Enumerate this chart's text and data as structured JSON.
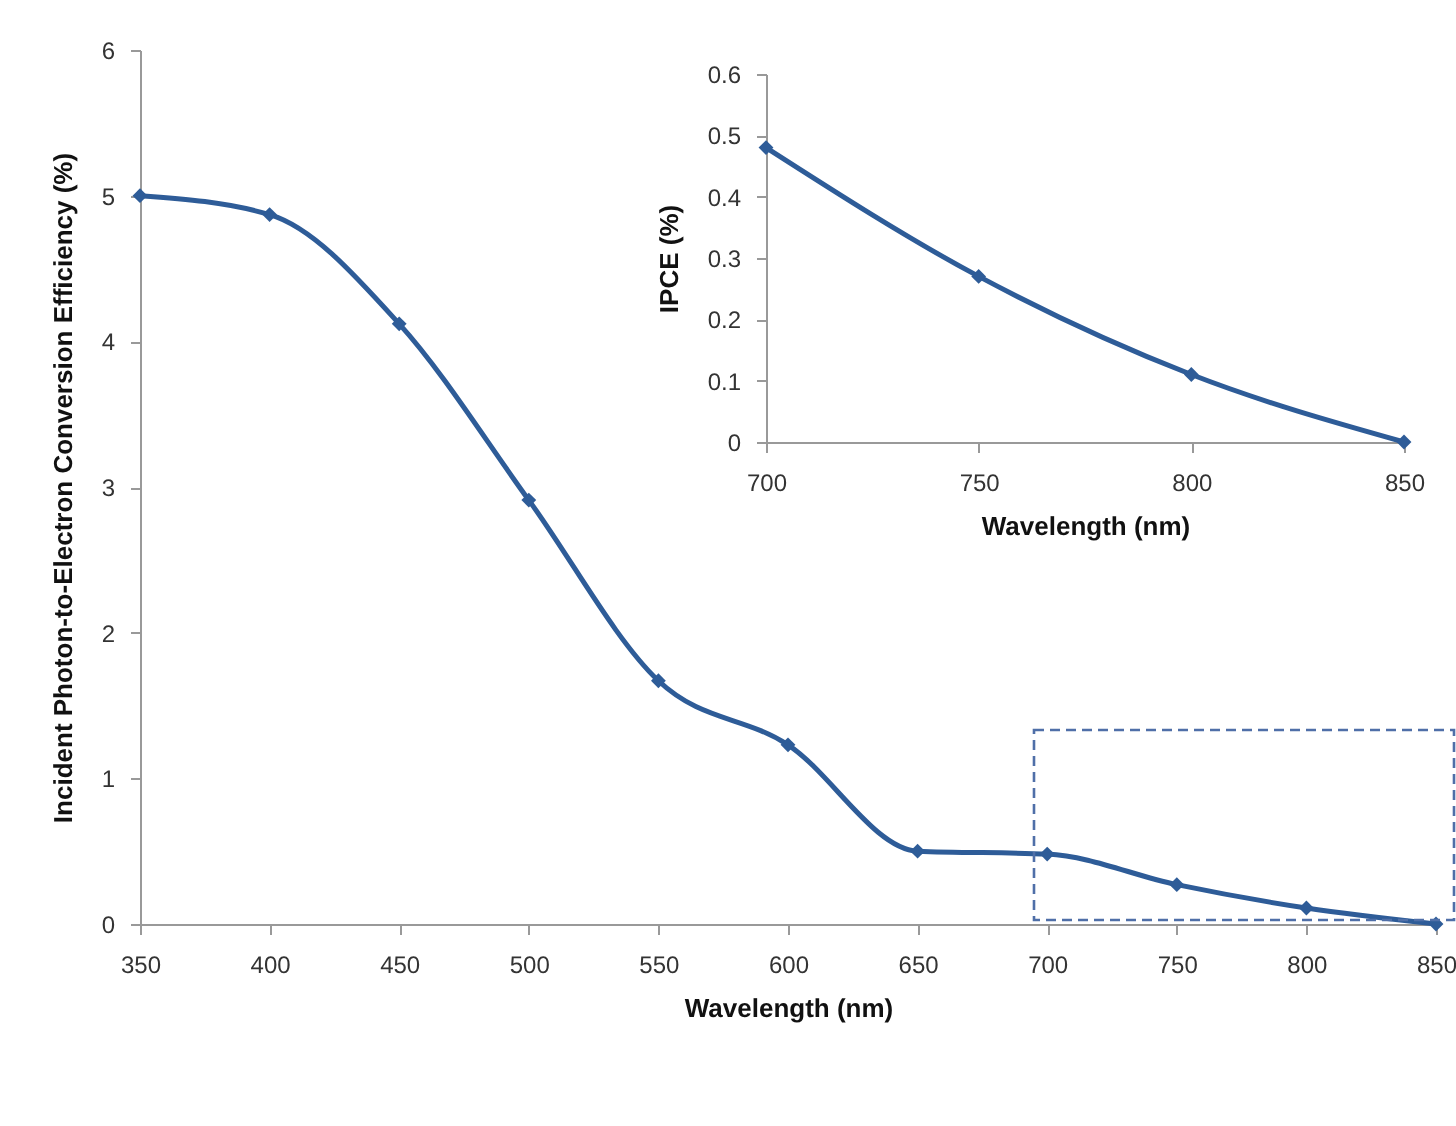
{
  "chart_data": [
    {
      "type": "line",
      "xlabel": "Wavelength (nm)",
      "ylabel": "Incident Photon-to-Electron Conversion Efficiency (%)",
      "x": [
        350,
        400,
        450,
        500,
        550,
        600,
        650,
        700,
        750,
        800,
        850
      ],
      "series": [
        {
          "color": "#2e5c98",
          "values": [
            5.0,
            4.87,
            4.12,
            2.91,
            1.67,
            1.23,
            0.5,
            0.48,
            0.27,
            0.11,
            0.0
          ]
        }
      ],
      "xlim": [
        350,
        850
      ],
      "xticks": [
        350,
        400,
        450,
        500,
        550,
        600,
        650,
        700,
        750,
        800,
        850
      ],
      "ylim": [
        0,
        6
      ],
      "yticks": [
        0,
        1,
        2,
        3,
        4,
        5,
        6
      ],
      "marker": "diamond",
      "line_style": "solid"
    },
    {
      "type": "line",
      "xlabel": "Wavelength (nm)",
      "ylabel": "IPCE (%)",
      "x": [
        700,
        750,
        800,
        850
      ],
      "series": [
        {
          "color": "#2e5c98",
          "values": [
            0.48,
            0.27,
            0.11,
            0.0
          ]
        }
      ],
      "xlim": [
        700,
        850
      ],
      "xticks": [
        700,
        750,
        800,
        850
      ],
      "ylim": [
        0,
        0.6
      ],
      "yticks": [
        0,
        0.1,
        0.2,
        0.3,
        0.4,
        0.5,
        0.6
      ],
      "marker": "diamond",
      "line_style": "solid"
    }
  ]
}
